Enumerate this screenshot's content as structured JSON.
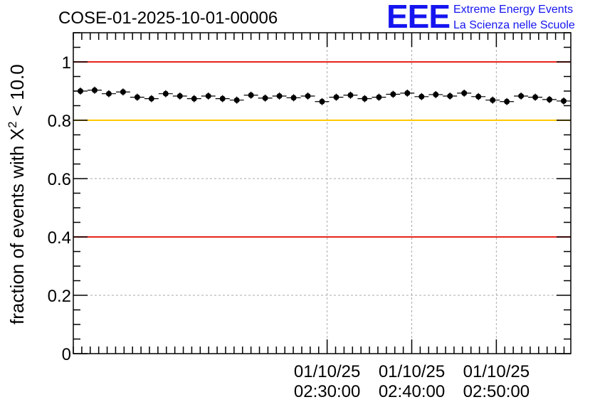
{
  "chart_data": {
    "type": "scatter",
    "title": "COSE-01-2025-10-01-00006",
    "ylabel": {
      "prefix": "fraction of events with ",
      "symbol": "X",
      "sup": "2",
      "suffix": " < 10.0"
    },
    "xlabel": "",
    "ylim": [
      0,
      1.1
    ],
    "yticks": [
      {
        "v": 0,
        "label": "0"
      },
      {
        "v": 0.2,
        "label": "0.2"
      },
      {
        "v": 0.4,
        "label": "0.4"
      },
      {
        "v": 0.6,
        "label": "0.6"
      },
      {
        "v": 0.8,
        "label": "0.8"
      },
      {
        "v": 1.0,
        "label": "1"
      }
    ],
    "xlim_minutes": [
      2.0,
      2.98
    ],
    "xticks": [
      {
        "v": 2.5,
        "date": "01/10/25",
        "time": "02:30:00"
      },
      {
        "v": 2.6667,
        "date": "01/10/25",
        "time": "02:40:00"
      },
      {
        "v": 2.8333,
        "date": "01/10/25",
        "time": "02:50:00"
      }
    ],
    "grid": true,
    "reference_lines": [
      {
        "y": 1.0,
        "color": "#e8241c"
      },
      {
        "y": 0.8,
        "color": "#ffc800"
      },
      {
        "y": 0.4,
        "color": "#e8241c"
      }
    ],
    "series": [
      {
        "marker_color": "#000000",
        "values": [
          0.9,
          0.903,
          0.891,
          0.897,
          0.879,
          0.874,
          0.891,
          0.883,
          0.874,
          0.883,
          0.874,
          0.869,
          0.886,
          0.876,
          0.883,
          0.877,
          0.883,
          0.864,
          0.879,
          0.886,
          0.874,
          0.879,
          0.889,
          0.893,
          0.881,
          0.888,
          0.883,
          0.893,
          0.881,
          0.869,
          0.864,
          0.883,
          0.879,
          0.871,
          0.866
        ]
      }
    ]
  },
  "logo": {
    "mark": "EEE",
    "line1": "Extreme Energy Events",
    "line2": "La Scienza nelle Scuole",
    "color": "#1515f0"
  }
}
